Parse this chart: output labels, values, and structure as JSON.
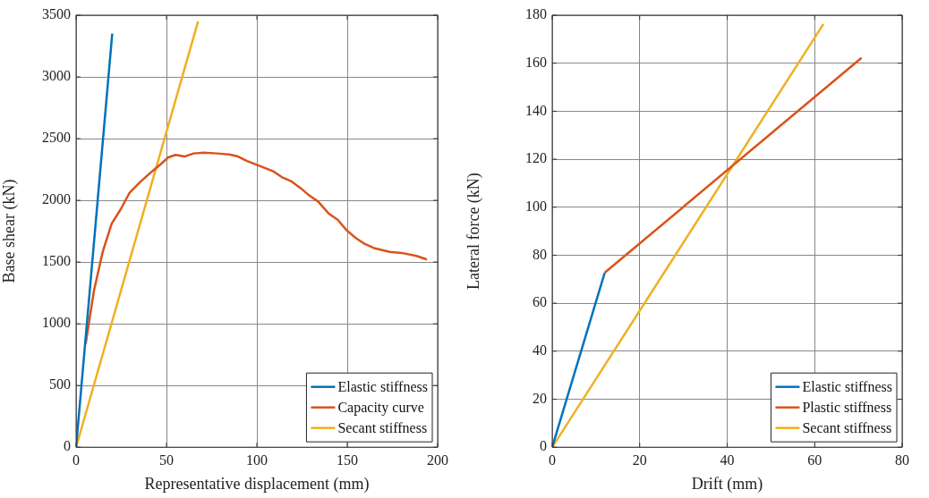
{
  "chart_data": [
    {
      "type": "line",
      "xlabel": "Representative displacement (mm)",
      "ylabel": "Base shear (kN)",
      "xlim": [
        0,
        200
      ],
      "xticks": [
        0,
        50,
        100,
        150,
        200
      ],
      "ylim": [
        0,
        3500
      ],
      "yticks": [
        0,
        500,
        1000,
        1500,
        2000,
        2500,
        3000,
        3500
      ],
      "grid": true,
      "legend": "bottom right",
      "series": [
        {
          "name": "Elastic stiffness",
          "color": "#0072bd",
          "x": [
            0,
            20
          ],
          "values": [
            0,
            3350
          ]
        },
        {
          "name": "Capacity curve",
          "color": "#d95319",
          "x": [
            5.3,
            9.9,
            14.8,
            19.7,
            24.7,
            29.6,
            35.4,
            41.9,
            46.9,
            51,
            55.1,
            60,
            65,
            70.7,
            78.1,
            84.7,
            89.6,
            94.6,
            101,
            109.4,
            114.3,
            119.2,
            124.2,
            129.1,
            134,
            139.8,
            144.7,
            149.7,
            154.6,
            159.5,
            165.3,
            173.5,
            180.1,
            188.3,
            194.1
          ],
          "values": [
            837,
            1269,
            1587,
            1811,
            1928,
            2062,
            2148,
            2233,
            2294,
            2348,
            2368,
            2355,
            2380,
            2387,
            2380,
            2372,
            2355,
            2319,
            2282,
            2233,
            2184,
            2153,
            2099,
            2038,
            1989,
            1892,
            1843,
            1757,
            1696,
            1648,
            1611,
            1582,
            1574,
            1550,
            1521
          ]
        },
        {
          "name": "Secant stiffness",
          "color": "#edb120",
          "x": [
            0,
            67.5
          ],
          "values": [
            0,
            3450
          ]
        }
      ]
    },
    {
      "type": "line",
      "xlabel": "Drift (mm)",
      "ylabel": "Lateral force (kN)",
      "xlim": [
        0,
        80
      ],
      "xticks": [
        0,
        20,
        40,
        60,
        80
      ],
      "ylim": [
        0,
        180
      ],
      "yticks": [
        0,
        20,
        40,
        60,
        80,
        100,
        120,
        140,
        160,
        180
      ],
      "grid": true,
      "legend": "bottom right",
      "series": [
        {
          "name": "Elastic stiffness",
          "color": "#0072bd",
          "x": [
            0,
            12
          ],
          "values": [
            0,
            72.7
          ]
        },
        {
          "name": "Plastic stiffness",
          "color": "#d95319",
          "x": [
            12,
            70.7
          ],
          "values": [
            72.7,
            162.2
          ]
        },
        {
          "name": "Secant stiffness",
          "color": "#edb120",
          "x": [
            0,
            62
          ],
          "values": [
            0,
            176.3
          ]
        }
      ]
    }
  ]
}
